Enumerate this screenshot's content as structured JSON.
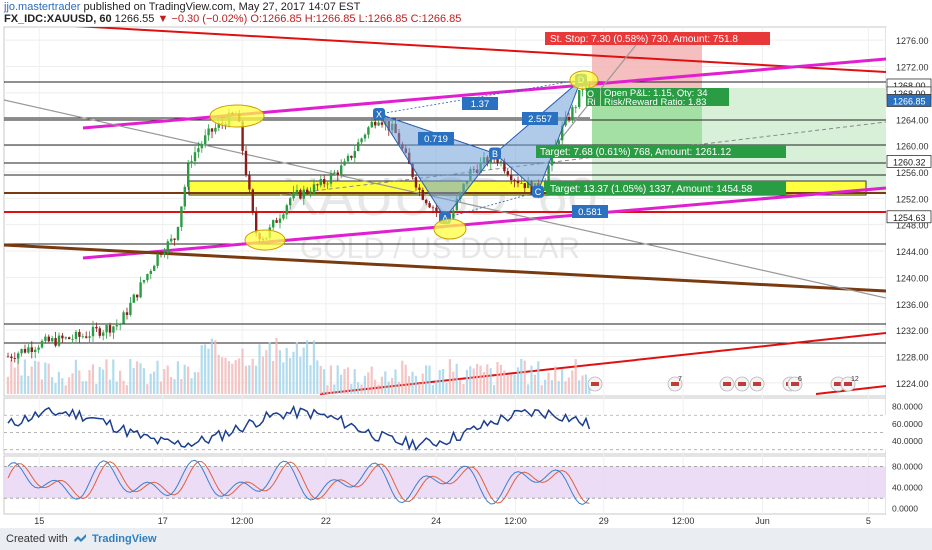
{
  "header": {
    "author": "jjo.mastertrader",
    "published": "published on TradingView.com, May 27, 2017 14:07 EST",
    "symbol": "FX_IDC:XAUUSD, 60",
    "last": "1266.55",
    "change": "−0.30 (−0.02%)",
    "ohlc_o": "O:1266.85",
    "ohlc_h": "H:1266.85",
    "ohlc_l": "L:1266.85",
    "ohlc_c": "C:1266.85"
  },
  "watermark": {
    "line1": "XAUUSD, 60",
    "line2": "GOLD / US DOLLAR"
  },
  "chart_data": {
    "type": "candlestick",
    "instrument": "FX_IDC:XAUUSD",
    "timeframe": "60",
    "price_axis": {
      "range": [
        1222,
        1278
      ],
      "ticks": [
        "1276.00",
        "1272.00",
        "1268.00",
        "1264.00",
        "1260.00",
        "1256.00",
        "1252.00",
        "1248.00",
        "1244.00",
        "1240.00",
        "1236.00",
        "1232.00",
        "1228.00",
        "1224.00"
      ],
      "tick_values": [
        1276,
        1272,
        1268,
        1264,
        1260,
        1256,
        1252,
        1248,
        1244,
        1240,
        1236,
        1232,
        1228,
        1224
      ],
      "price_labels": [
        {
          "text": "1268.00",
          "value": 1269.2,
          "color": "#222222"
        },
        {
          "text": "1268.00",
          "value": 1268.0,
          "color": "#222222"
        },
        {
          "text": "1266.85",
          "value": 1266.85,
          "color": "#2a72c1"
        },
        {
          "text": "1260.32",
          "value": 1257.6,
          "color": "#222222"
        },
        {
          "text": "1254.63",
          "value": 1249.2,
          "color": "#222222"
        }
      ]
    },
    "time_axis": {
      "ticks": [
        "15",
        "17",
        "12:00",
        "22",
        "24",
        "12:00",
        "29",
        "12:00",
        "Jun",
        "5"
      ],
      "tick_positions": [
        0.04,
        0.18,
        0.27,
        0.365,
        0.49,
        0.58,
        0.68,
        0.77,
        0.86,
        0.98
      ]
    },
    "pattern": {
      "points": [
        {
          "label": "X",
          "value": 1264.8
        },
        {
          "label": "A",
          "value": 1249.0
        },
        {
          "label": "B",
          "value": 1258.8
        },
        {
          "label": "C",
          "value": 1253.0
        },
        {
          "label": "D",
          "value": 1270.0
        }
      ],
      "ratios": [
        "1.37",
        "0.719",
        "2.557",
        "0.581"
      ]
    },
    "position": {
      "stop": "St. Stop: 7.30 (0.58%) 730, Amount: 751.8",
      "open_pl": "Open P&L: 1.15, Qty: 34",
      "risk_reward": "Risk/Reward Ratio: 1.83",
      "target1": "Target: 7.68 (0.61%) 768, Amount: 1261.12",
      "target2": "Target: 13.37 (1.05%) 1337, Amount: 1454.58",
      "cut_o": "O",
      "cut_r": "Ri"
    },
    "events": [
      "",
      "7",
      "",
      "",
      "",
      "",
      "6",
      "",
      "12"
    ],
    "rsi": {
      "ticks": [
        "80.0000",
        "60.0000",
        "40.0000"
      ],
      "tick_values": [
        80,
        60,
        40
      ],
      "range": [
        25,
        90
      ]
    },
    "stoch": {
      "ticks": [
        "80.0000",
        "40.0000",
        "0.0000"
      ],
      "tick_values": [
        80,
        40,
        0
      ],
      "range": [
        -10,
        100
      ]
    },
    "colors": {
      "up": "#2a9d44",
      "down": "#8b1c1c",
      "magenta": "#e020d0",
      "red_line": "#e01010",
      "brown": "#7a3a10",
      "pattern_fill": "#6f9fd8",
      "yellow": "#ffff40",
      "rsi": "#1b3f8f",
      "stoch_k": "#3a7fd0",
      "stoch_d": "#e06040"
    }
  },
  "footer": {
    "created": "Created with",
    "brand": "TradingView"
  }
}
